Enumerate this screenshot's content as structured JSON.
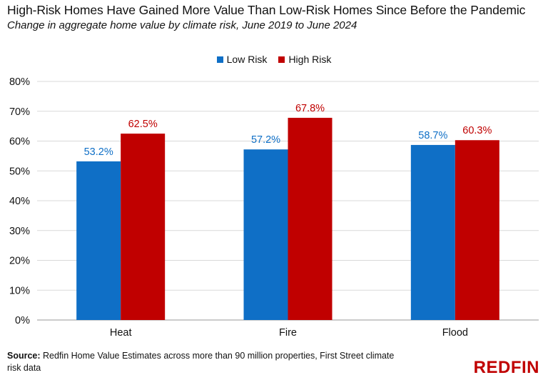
{
  "title": "High-Risk Homes Have Gained More Value Than Low-Risk Homes Since Before the Pandemic",
  "subtitle": "Change in aggregate home value by climate risk, June 2019 to June 2024",
  "legend": {
    "low": "Low Risk",
    "high": "High Risk"
  },
  "source": {
    "label": "Source:",
    "text": "Redfin Home Value Estimates across more than 90 million properties, First Street climate risk data"
  },
  "logo": {
    "text": "REDFIN",
    "color": "#c00000"
  },
  "colors": {
    "low": "#0f6fc6",
    "high": "#c00000"
  },
  "chart_data": {
    "type": "bar",
    "categories": [
      "Heat",
      "Fire",
      "Flood"
    ],
    "series": [
      {
        "name": "Low Risk",
        "values": [
          53.2,
          57.2,
          58.7
        ],
        "labels": [
          "53.2%",
          "57.2%",
          "58.7%"
        ],
        "color": "#0f6fc6"
      },
      {
        "name": "High Risk",
        "values": [
          62.5,
          67.8,
          60.3
        ],
        "labels": [
          "62.5%",
          "67.8%",
          "60.3%"
        ],
        "color": "#c00000"
      }
    ],
    "ylim": [
      0,
      80
    ],
    "yticks": [
      0,
      10,
      20,
      30,
      40,
      50,
      60,
      70,
      80
    ],
    "ytick_labels": [
      "0%",
      "10%",
      "20%",
      "30%",
      "40%",
      "50%",
      "60%",
      "70%",
      "80%"
    ],
    "grid": true,
    "legend_position": "top-center"
  }
}
